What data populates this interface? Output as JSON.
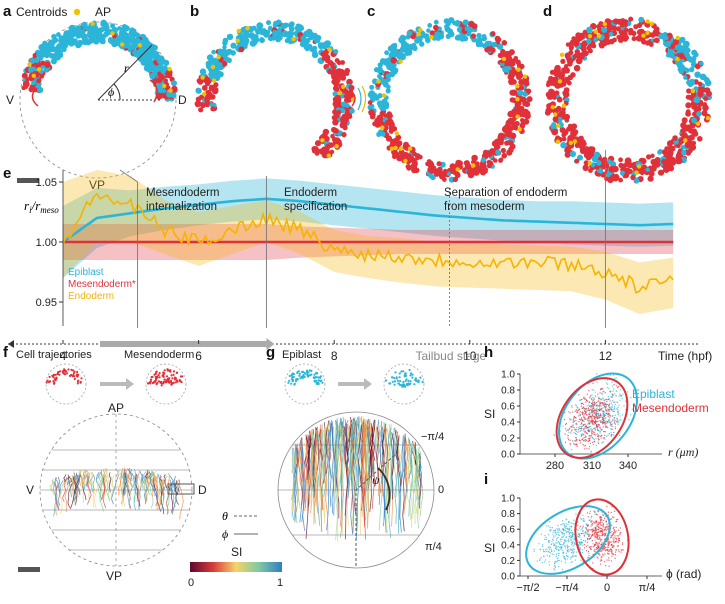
{
  "colors": {
    "epiblast": "#2bb5d8",
    "mesendoderm": "#e0313a",
    "endoderm": "#f5b400",
    "centroid": "#f2c200",
    "grey_line": "#777777"
  },
  "panel_a": {
    "letter": "a",
    "centroids_label": "Centroids",
    "ap": "AP",
    "vp": "VP",
    "v": "V",
    "d": "D",
    "r_symbol": "r",
    "phi_symbol": "ϕ"
  },
  "panel_b": {
    "letter": "b"
  },
  "panel_c": {
    "letter": "c"
  },
  "panel_d": {
    "letter": "d"
  },
  "panel_e": {
    "letter": "e",
    "ylabel_main": "r",
    "ylabel_sub_i": "i",
    "ylabel_sep": "/",
    "ylabel_r": "r",
    "ylabel_sub_meso": "meso",
    "legend": [
      "Epiblast",
      "Mesendoderm*",
      "Endoderm"
    ],
    "annotations": {
      "internalization_1": "Mesendoderm",
      "internalization_2": "internalization",
      "specification_1": "Endoderm",
      "specification_2": "specification",
      "separation_1": "Separation of endoderm",
      "separation_2": "from mesoderm",
      "tailbud": "Tailbud stage"
    },
    "xlabel": "Time (hpf)"
  },
  "chart_data": {
    "type": "line",
    "title": "",
    "xlabel": "Time (hpf)",
    "ylabel": "ri/rmeso",
    "xlim": [
      4,
      13.1
    ],
    "ylim": [
      0.93,
      1.06
    ],
    "x_ticks": [
      4,
      6,
      8,
      10,
      12
    ],
    "y_ticks": [
      0.95,
      1.0,
      1.05
    ],
    "y_tick_labels": [
      "0.95",
      "1.00",
      "1.05"
    ],
    "x": [
      4.0,
      4.5,
      5.0,
      5.5,
      6.0,
      6.5,
      7.0,
      7.5,
      8.0,
      8.5,
      9.0,
      9.5,
      10.0,
      10.5,
      11.0,
      11.5,
      12.0,
      12.5,
      13.0
    ],
    "series": [
      {
        "name": "Epiblast",
        "values": [
          1.0,
          1.02,
          1.024,
          1.028,
          1.031,
          1.034,
          1.036,
          1.034,
          1.031,
          1.028,
          1.025,
          1.022,
          1.02,
          1.018,
          1.017,
          1.016,
          1.015,
          1.014,
          1.015
        ],
        "lower": [
          0.97,
          0.995,
          1.005,
          1.01,
          1.014,
          1.017,
          1.019,
          1.017,
          1.014,
          1.011,
          1.008,
          1.005,
          1.003,
          1.001,
          1.0,
          0.998,
          0.997,
          0.996,
          0.997
        ],
        "upper": [
          1.03,
          1.045,
          1.043,
          1.046,
          1.048,
          1.051,
          1.053,
          1.051,
          1.048,
          1.045,
          1.042,
          1.039,
          1.037,
          1.035,
          1.034,
          1.034,
          1.033,
          1.032,
          1.033
        ]
      },
      {
        "name": "Mesendoderm*",
        "values": [
          1.0,
          1.0,
          1.0,
          1.0,
          1.0,
          1.0,
          1.0,
          1.0,
          1.0,
          1.0,
          1.0,
          1.0,
          1.0,
          1.0,
          1.0,
          1.0,
          1.0,
          1.0,
          1.0
        ],
        "lower": [
          0.985,
          0.985,
          0.985,
          0.985,
          0.985,
          0.985,
          0.985,
          0.987,
          0.988,
          0.989,
          0.99,
          0.99,
          0.99,
          0.99,
          0.99,
          0.99,
          0.99,
          0.99,
          0.99
        ],
        "upper": [
          1.015,
          1.015,
          1.015,
          1.015,
          1.015,
          1.015,
          1.015,
          1.013,
          1.012,
          1.011,
          1.01,
          1.01,
          1.01,
          1.01,
          1.01,
          1.01,
          1.01,
          1.01,
          1.01
        ]
      },
      {
        "name": "Endoderm",
        "values": [
          1.0,
          1.04,
          1.03,
          1.01,
          1.0,
          1.01,
          1.02,
          1.01,
          0.993,
          0.99,
          0.988,
          0.985,
          0.984,
          0.983,
          0.983,
          0.982,
          0.975,
          0.962,
          0.967
        ],
        "lower": [
          0.97,
          1.0,
          1.0,
          0.99,
          0.98,
          0.99,
          1.0,
          0.99,
          0.975,
          0.97,
          0.966,
          0.963,
          0.962,
          0.961,
          0.96,
          0.959,
          0.952,
          0.94,
          0.945
        ],
        "upper": [
          1.05,
          1.06,
          1.055,
          1.035,
          1.025,
          1.03,
          1.035,
          1.025,
          1.01,
          1.005,
          1.003,
          1.0,
          0.999,
          0.998,
          0.997,
          0.996,
          0.992,
          0.983,
          0.987
        ]
      }
    ],
    "events": [
      {
        "label": "Mesendoderm internalization",
        "x": 5.1
      },
      {
        "label": "Endoderm specification",
        "x": 7.0
      },
      {
        "label": "Separation of endoderm from mesoderm",
        "x": 9.7
      },
      {
        "label": "Tailbud stage",
        "x": 9.7
      },
      {
        "label": "",
        "x": 12.0
      }
    ],
    "grid": false,
    "legend_position": "left"
  },
  "panel_f": {
    "letter": "f",
    "title_1": "Cell trajectories",
    "title_2": "Mesendoderm",
    "ap": "AP",
    "vp": "VP",
    "v": "V",
    "d": "D",
    "theta_symbol": "θ",
    "phi_symbol": "ϕ",
    "si_label": "SI",
    "si_min": "0",
    "si_max": "1"
  },
  "panel_g": {
    "letter": "g",
    "title": "Epiblast",
    "tick_neg": "−π/4",
    "tick_zero": "0",
    "tick_pos": "π/4",
    "psi_symbol": "ψ"
  },
  "panel_h": {
    "letter": "h",
    "ylabel": "SI",
    "xlabel": "r (μm)",
    "yticks": [
      "0.0",
      "0.2",
      "0.4",
      "0.6",
      "0.8",
      "1.0"
    ],
    "xticks": [
      "280",
      "310",
      "340"
    ],
    "legend": [
      "Epiblast",
      "Mesendoderm"
    ]
  },
  "panel_i": {
    "letter": "i",
    "ylabel": "SI",
    "xlabel": "ϕ (rad)",
    "yticks": [
      "0.0",
      "0.2",
      "0.4",
      "0.6",
      "0.8",
      "1.0"
    ],
    "xticks": [
      "−π/2",
      "−π/4",
      "0",
      "π/4"
    ]
  }
}
